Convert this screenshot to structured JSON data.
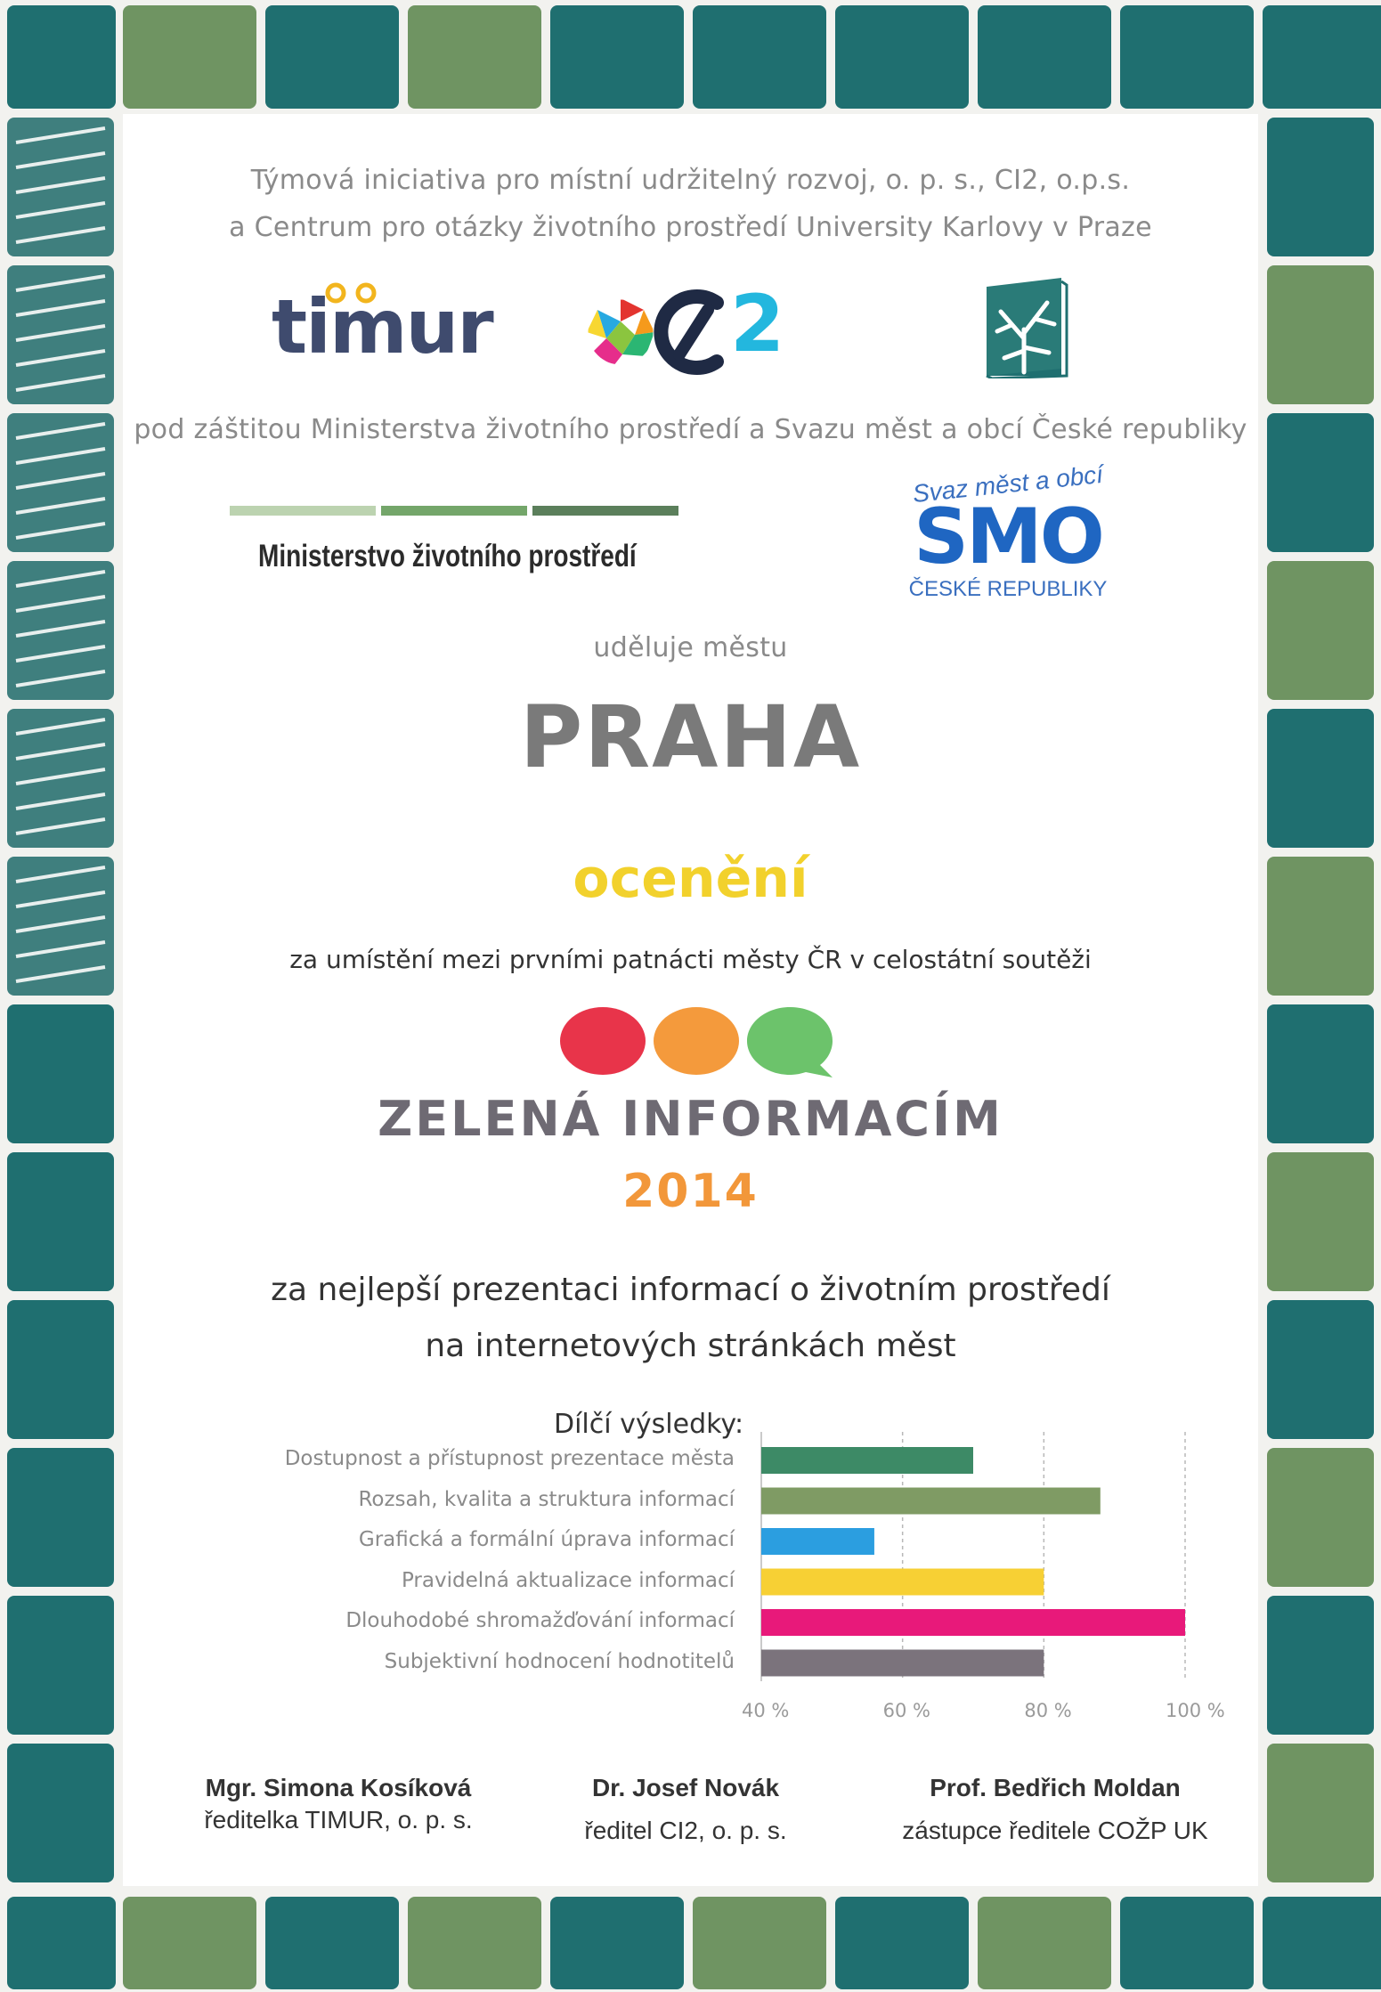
{
  "header": {
    "line1": "Týmová iniciativa pro místní udržitelný rozvoj, o. p. s., CI2, o.p.s.",
    "line2": "a Centrum pro otázky životního prostředí University Karlovy v Praze"
  },
  "logos": {
    "timur": "timur",
    "ci2": "2"
  },
  "patronage": "pod záštitou Ministerstva životního prostředí a Svazu měst a obcí České republiky",
  "mzp_logo_text": "Ministerstvo životního prostředí",
  "smo_logo": {
    "top": "Svaz měst a obcí",
    "main": "SMO",
    "bottom": "ČESKÉ REPUBLIKY"
  },
  "awards_to": "uděluje městu",
  "city": "PRAHA",
  "award": "ocenění",
  "placement": "za umístění mezi prvními patnácti městy ČR v celostátní soutěži",
  "contest": "ZELENÁ INFORMACÍM",
  "year": "2014",
  "purpose_line1": "za nejlepší prezentaci informací o životním prostředí",
  "purpose_line2": "na internetových stránkách měst",
  "chart_data": {
    "type": "bar",
    "orientation": "horizontal",
    "title": "Dílčí výsledky:",
    "categories": [
      "Dostupnost a přístupnost prezentace města",
      "Rozsah, kvalita a struktura informací",
      "Grafická a formální úprava informací",
      "Pravidelná aktualizace informací",
      "Dlouhodobé shromažďování informací",
      "Subjektivní hodnocení hodnotitelů"
    ],
    "values": [
      70,
      88,
      56,
      80,
      100,
      80
    ],
    "colors": [
      "#3d8a66",
      "#7f9b64",
      "#2b9ee0",
      "#f7d034",
      "#e8197a",
      "#7b737c"
    ],
    "xlim": [
      40,
      100
    ],
    "ticks": [
      "40 %",
      "60 %",
      "80 %",
      "100 %"
    ],
    "tick_values": [
      40,
      60,
      80,
      100
    ],
    "grid": true
  },
  "signatures": [
    {
      "name": "Mgr. Simona Kosíková",
      "role": "ředitelka TIMUR, o. p. s."
    },
    {
      "name": "Dr. Josef Novák",
      "role": "ředitel CI2, o. p. s."
    },
    {
      "name": "Prof. Bedřich Moldan",
      "role": "zástupce ředitele COŽP UK"
    }
  ],
  "colors": {
    "frame_teal": "#1f6f70",
    "frame_green": "#6f9462",
    "dot_red": "#e8344a",
    "dot_orange": "#f49a3c",
    "dot_green": "#6cc36b"
  }
}
